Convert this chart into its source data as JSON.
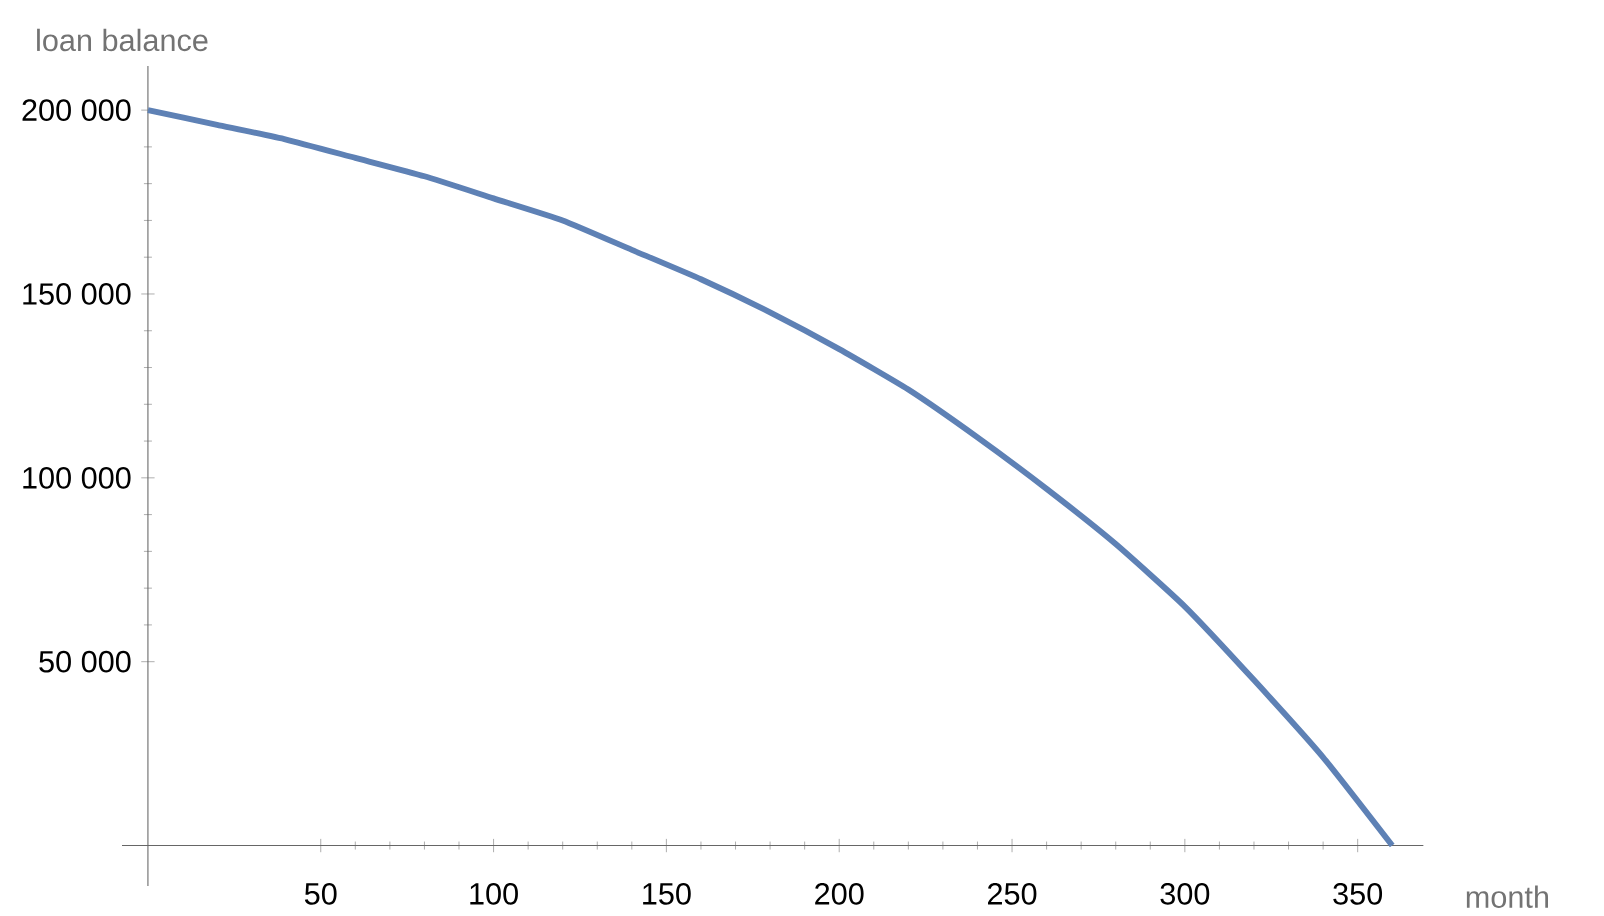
{
  "chart_data": {
    "type": "line",
    "xlabel": "month",
    "ylabel": "loan balance",
    "x": [
      0,
      20,
      40,
      60,
      80,
      100,
      120,
      140,
      160,
      180,
      200,
      220,
      240,
      260,
      280,
      300,
      320,
      340,
      360
    ],
    "series": [
      {
        "color": "#5e81b5",
        "values": [
          200000,
          196000,
          192000,
          187000,
          182000,
          176000,
          170000,
          162000,
          154000,
          145000,
          135000,
          124000,
          111000,
          97000,
          82000,
          65000,
          45000,
          24000,
          0
        ]
      }
    ],
    "xlim": [
      -7.5,
      369
    ],
    "ylim": [
      -11000,
      212000
    ],
    "xticks": [
      50,
      100,
      150,
      200,
      250,
      300,
      350
    ],
    "yticks": [
      {
        "value": 50000,
        "label": "50 000"
      },
      {
        "value": 100000,
        "label": "100 000"
      },
      {
        "value": 150000,
        "label": "150 000"
      },
      {
        "value": 200000,
        "label": "200 000"
      }
    ],
    "grid": false
  }
}
